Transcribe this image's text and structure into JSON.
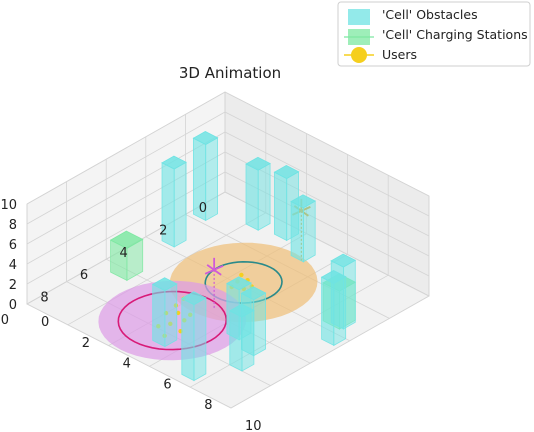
{
  "chart_data": {
    "type": "3d-scatter",
    "title": "3D Animation",
    "colors": {
      "obstacle": "#6fe3e3",
      "charging": "#7ee8a2",
      "user": "#f5cf1e",
      "coverage_orange": "#eebf7a",
      "coverage_pink": "#dc9ce6",
      "ring_teal": "#2a8a8a",
      "ring_pink": "#d81b78",
      "uav_orange": "#e6a52a",
      "uav_magenta": "#d05ad8"
    },
    "axes": {
      "x": {
        "range": [
          0,
          10
        ],
        "ticks": [
          "0",
          "2",
          "4",
          "6",
          "8",
          "10"
        ]
      },
      "y": {
        "range": [
          0,
          10
        ],
        "ticks": [
          "0",
          "2",
          "4",
          "6",
          "8",
          "10"
        ]
      },
      "z": {
        "range": [
          0,
          10
        ],
        "ticks": [
          "0",
          "2",
          "4",
          "6",
          "8",
          "10"
        ]
      },
      "grid": true
    },
    "legend": {
      "position": "top-right",
      "entries": [
        "'Cell' Obstacles",
        "'Cell' Charging Stations",
        "Users"
      ]
    },
    "obstacles": [
      {
        "x": 1.2,
        "y": 0.2,
        "w": 0.6,
        "d": 0.6,
        "h": 7.6
      },
      {
        "x": 3.2,
        "y": 0.6,
        "w": 0.6,
        "d": 0.6,
        "h": 7.8
      },
      {
        "x": 0.8,
        "y": 4.6,
        "w": 0.6,
        "d": 0.6,
        "h": 5.4
      },
      {
        "x": 0.4,
        "y": 2.0,
        "w": 0.6,
        "d": 0.6,
        "h": 6.0
      },
      {
        "x": 0.2,
        "y": 3.2,
        "w": 0.6,
        "d": 0.6,
        "h": 6.2
      },
      {
        "x": 3.0,
        "y": 8.7,
        "w": 0.6,
        "d": 0.6,
        "h": 6.2
      },
      {
        "x": 6.4,
        "y": 7.6,
        "w": 0.6,
        "d": 0.6,
        "h": 5.6
      },
      {
        "x": 6.0,
        "y": 6.5,
        "w": 0.6,
        "d": 0.6,
        "h": 5.0
      },
      {
        "x": 7.4,
        "y": 8.0,
        "w": 0.6,
        "d": 0.6,
        "h": 5.4
      },
      {
        "x": 9.0,
        "y": 7.2,
        "w": 0.6,
        "d": 0.6,
        "h": 7.6
      },
      {
        "x": 4.0,
        "y": 9.2,
        "w": 0.6,
        "d": 0.6,
        "h": 6.2
      },
      {
        "x": 8.1,
        "y": 4.9,
        "w": 0.6,
        "d": 0.6,
        "h": 5.6
      }
    ],
    "charging_stations": [
      {
        "x": 5.7,
        "y": 0.7,
        "w": 0.8,
        "d": 0.8,
        "h": 3.2
      },
      {
        "x": 2.9,
        "y": 8.4,
        "w": 0.8,
        "d": 0.8,
        "h": 3.8
      }
    ],
    "coverage": [
      {
        "cx": 3.8,
        "cy": 4.6,
        "r": 2.6,
        "ring_r": 1.35,
        "color": "orange",
        "ring": "teal"
      },
      {
        "cx": 7.3,
        "cy": 4.5,
        "r": 2.6,
        "ring_r": 1.9,
        "color": "pink",
        "ring": "pink"
      }
    ],
    "uavs": [
      {
        "x": 1.5,
        "y": 5.2,
        "z": 5.2,
        "color": "orange"
      },
      {
        "x": 5.7,
        "y": 5.0,
        "z": 3.8,
        "color": "magenta"
      }
    ],
    "users": [
      {
        "x": 3.6,
        "y": 4.6
      },
      {
        "x": 3.9,
        "y": 4.4
      },
      {
        "x": 4.1,
        "y": 4.9
      },
      {
        "x": 3.8,
        "y": 5.0
      },
      {
        "x": 3.5,
        "y": 4.2
      },
      {
        "x": 4.3,
        "y": 4.5
      },
      {
        "x": 6.0,
        "y": 3.8
      },
      {
        "x": 6.5,
        "y": 3.9
      },
      {
        "x": 6.8,
        "y": 4.3
      },
      {
        "x": 7.1,
        "y": 4.0
      },
      {
        "x": 7.0,
        "y": 4.8
      },
      {
        "x": 7.5,
        "y": 4.6
      },
      {
        "x": 7.9,
        "y": 4.4
      },
      {
        "x": 7.6,
        "y": 5.2
      },
      {
        "x": 6.6,
        "y": 4.7
      },
      {
        "x": 8.2,
        "y": 5.0
      }
    ]
  }
}
